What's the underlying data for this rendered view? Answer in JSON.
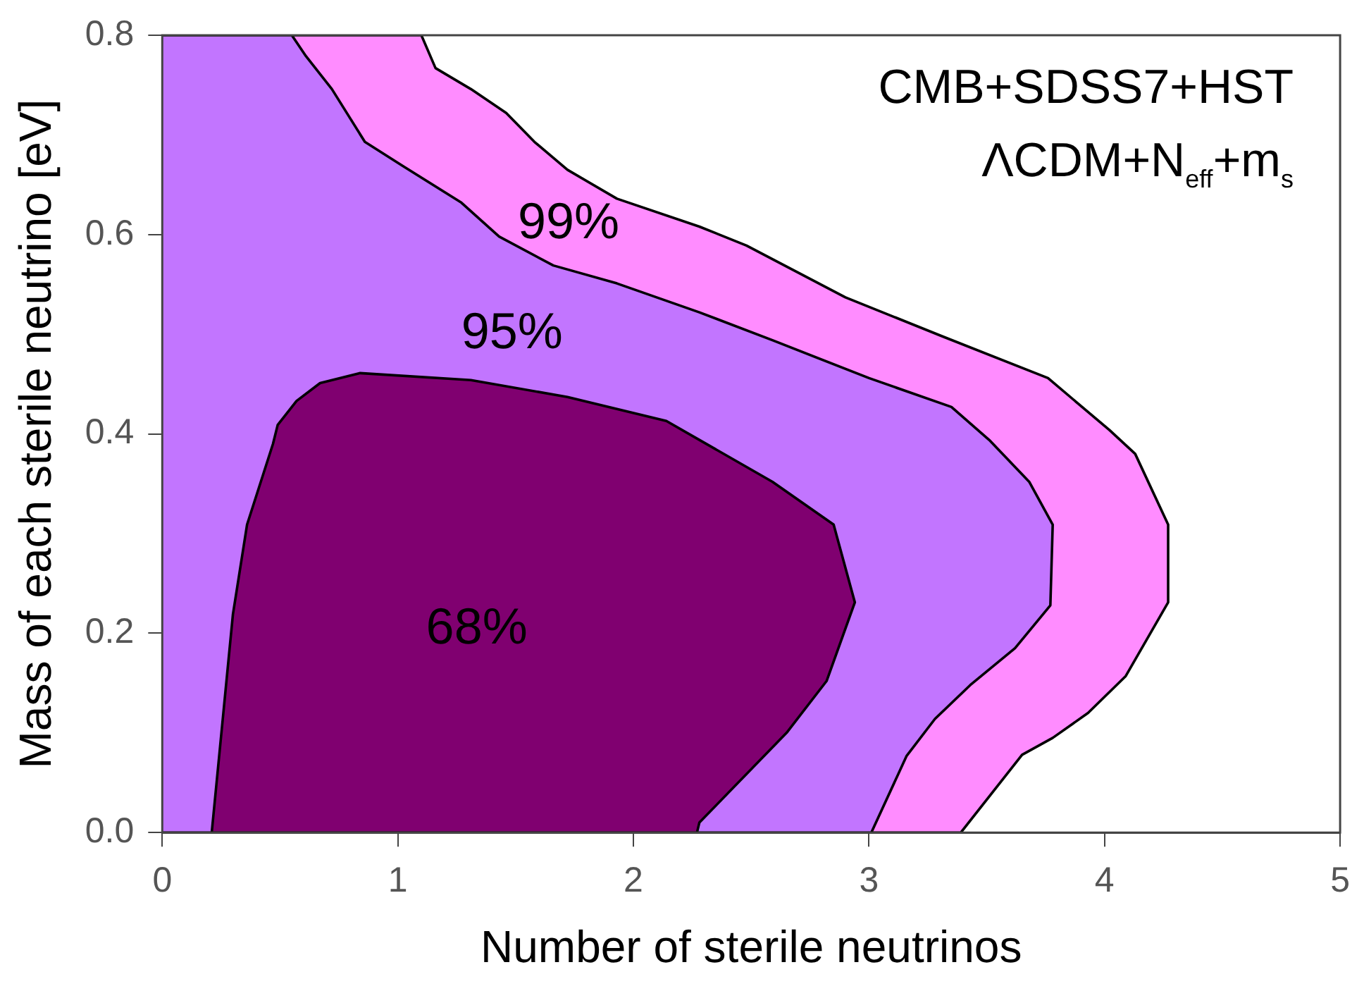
{
  "chart_data": {
    "type": "area",
    "xlabel": "Number of sterile neutrinos",
    "ylabel": "Mass of each sterile neutrino [eV]",
    "xlim": [
      0,
      5
    ],
    "ylim": [
      0,
      0.8
    ],
    "xticks": [
      0,
      1,
      2,
      3,
      4,
      5
    ],
    "yticks": [
      {
        "value": 0,
        "label": "0.0"
      },
      {
        "value": 0.2,
        "label": "0.2"
      },
      {
        "value": 0.4,
        "label": "0.4"
      },
      {
        "value": 0.6,
        "label": "0.6"
      },
      {
        "value": 0.8,
        "label": "0.8"
      }
    ],
    "grid": false,
    "legend": false,
    "series": [
      {
        "name": "99%",
        "color": "#ff8cff",
        "x": [
          0,
          3.39,
          3.65,
          3.78,
          3.93,
          4.09,
          4.27,
          4.27,
          4.13,
          4.02,
          3.76,
          3.31,
          2.9,
          2.48,
          2.28,
          1.93,
          1.72,
          1.58,
          1.46,
          1.31,
          1.16,
          1.1,
          0
        ],
        "values": [
          0,
          0,
          0.078,
          0.095,
          0.12,
          0.157,
          0.231,
          0.309,
          0.38,
          0.404,
          0.456,
          0.498,
          0.537,
          0.589,
          0.608,
          0.636,
          0.665,
          0.693,
          0.722,
          0.746,
          0.767,
          0.8,
          0.8
        ]
      },
      {
        "name": "95%",
        "color": "#c275ff",
        "x": [
          0,
          3.01,
          3.16,
          3.28,
          3.43,
          3.62,
          3.77,
          3.78,
          3.68,
          3.51,
          3.35,
          3.0,
          2.59,
          2.28,
          1.93,
          1.66,
          1.43,
          1.27,
          1.02,
          0.86,
          0.72,
          0.61,
          0.55,
          0
        ],
        "values": [
          0,
          0,
          0.077,
          0.114,
          0.148,
          0.185,
          0.228,
          0.309,
          0.352,
          0.394,
          0.427,
          0.456,
          0.494,
          0.522,
          0.551,
          0.569,
          0.598,
          0.632,
          0.669,
          0.693,
          0.746,
          0.779,
          0.8,
          0.8
        ]
      },
      {
        "name": "68%",
        "color": "#800070",
        "x": [
          0.21,
          2.27,
          2.28,
          2.65,
          2.82,
          2.94,
          2.85,
          2.59,
          2.28,
          2.14,
          1.72,
          1.31,
          0.84,
          0.67,
          0.57,
          0.49,
          0.47,
          0.36,
          0.3,
          0.21
        ],
        "values": [
          0,
          0,
          0.01,
          0.1,
          0.152,
          0.231,
          0.309,
          0.352,
          0.394,
          0.413,
          0.437,
          0.454,
          0.461,
          0.451,
          0.433,
          0.409,
          0.39,
          0.309,
          0.219,
          0
        ]
      }
    ],
    "annotations": [
      "CMB+SDSS7+HST",
      "ΛCDM+N$_{eff}$+m$_{s}$"
    ]
  }
}
